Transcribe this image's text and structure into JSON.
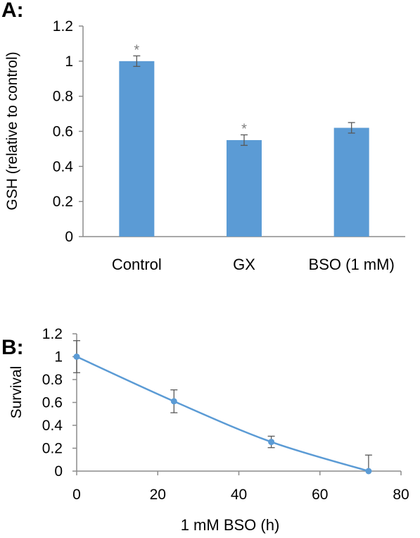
{
  "chart_data": [
    {
      "panel_label": "A:",
      "type": "bar",
      "ylabel": "GSH (relative to control)",
      "xlabel": "",
      "ylim": [
        0,
        1.2
      ],
      "yticks": [
        0,
        0.2,
        0.4,
        0.6,
        0.8,
        1,
        1.2
      ],
      "ytick_labels": [
        "0",
        "0.2",
        "0.4",
        "0.6",
        "0.8",
        "1",
        "1.2"
      ],
      "categories": [
        "Control",
        "GX",
        "BSO (1 mM)"
      ],
      "values": [
        1.0,
        0.55,
        0.62
      ],
      "errors": [
        0.03,
        0.03,
        0.03
      ],
      "annotations": [
        "*",
        "*",
        ""
      ],
      "color": "#5b9bd5",
      "grid": false,
      "legend": "none"
    },
    {
      "panel_label": "B:",
      "type": "line",
      "ylabel": "Survival",
      "xlabel": "1 mM BSO (h)",
      "xlim": [
        0,
        80
      ],
      "ylim": [
        0,
        1.2
      ],
      "xticks": [
        0,
        20,
        40,
        60,
        80
      ],
      "xtick_labels": [
        "0",
        "20",
        "40",
        "60",
        "80"
      ],
      "yticks": [
        0,
        0.2,
        0.4,
        0.6,
        0.8,
        1,
        1.2
      ],
      "ytick_labels": [
        "0",
        "0.2",
        "0.4",
        "0.6",
        "0.8",
        "1",
        "1.2"
      ],
      "x": [
        0,
        24,
        48,
        72
      ],
      "y": [
        1.0,
        0.61,
        0.255,
        0.0
      ],
      "errors": [
        0.14,
        0.1,
        0.05,
        0.14
      ],
      "color": "#5b9bd5",
      "grid": false,
      "legend": "none"
    }
  ]
}
